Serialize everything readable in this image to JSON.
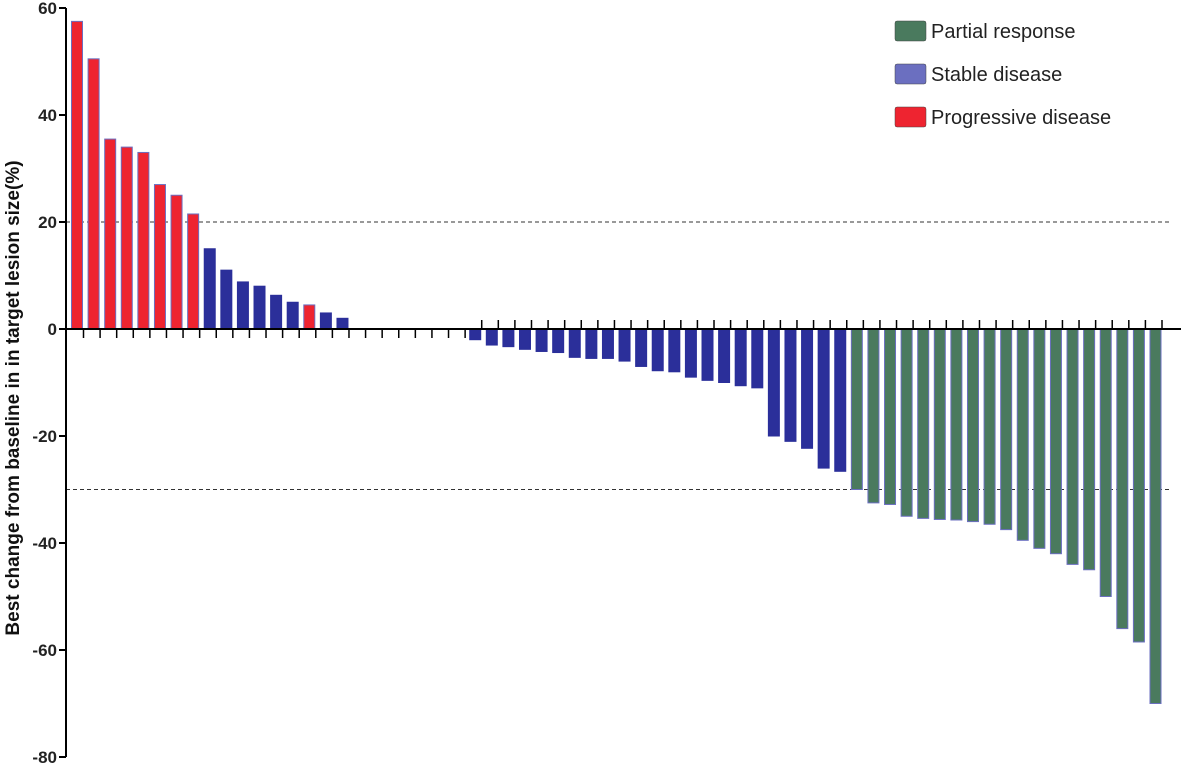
{
  "chart_data": {
    "type": "bar",
    "title": "",
    "xlabel": "",
    "ylabel": "Best change from baseline in  in target lesion size(%)",
    "ylim": [
      -80,
      60
    ],
    "yticks": [
      60,
      40,
      20,
      0,
      -20,
      -40,
      -60,
      -80
    ],
    "reference_lines": [
      20,
      -30
    ],
    "grid": false,
    "legend_position": "top-right",
    "legend": [
      {
        "label": "Partial response",
        "color": "#4a7a5e"
      },
      {
        "label": "Stable disease",
        "color": "#6b6fc0"
      },
      {
        "label": "Progressive disease",
        "color": "#ee2430"
      }
    ],
    "series": [
      {
        "name": "Progressive disease",
        "color": "#ee2430",
        "edge": "#6b6fc0"
      },
      {
        "name": "Stable disease",
        "color": "#2b2f9a",
        "edge": "#2b2f9a"
      },
      {
        "name": "Partial response",
        "color": "#4a7a5e",
        "edge": "#6b6fc0"
      }
    ],
    "values": [
      57.5,
      50.5,
      35.5,
      34,
      33,
      27,
      25,
      21.5,
      15,
      11,
      8.8,
      8,
      6.3,
      5,
      4.5,
      3,
      2,
      0,
      0,
      0,
      0,
      0,
      0,
      0,
      -2,
      -3,
      -3.3,
      -3.8,
      -4.2,
      -4.4,
      -5.3,
      -5.5,
      -5.5,
      -6,
      -7,
      -7.8,
      -8,
      -9,
      -9.6,
      -10,
      -10.6,
      -11,
      -20,
      -21,
      -22.3,
      -26,
      -26.6,
      -30,
      -32.5,
      -32.8,
      -35,
      -35.4,
      -35.6,
      -35.7,
      -36,
      -36.5,
      -37.5,
      -39.5,
      -41,
      -42,
      -44,
      -45,
      -50,
      -56,
      -58.5,
      -70
    ],
    "response": [
      "PD",
      "PD",
      "PD",
      "PD",
      "PD",
      "PD",
      "PD",
      "PD",
      "SD",
      "SD",
      "SD",
      "SD",
      "SD",
      "SD",
      "PD",
      "SD",
      "SD",
      "SD",
      "SD",
      "SD",
      "SD",
      "SD",
      "SD",
      "SD",
      "SD",
      "SD",
      "SD",
      "SD",
      "SD",
      "SD",
      "SD",
      "SD",
      "SD",
      "SD",
      "SD",
      "SD",
      "SD",
      "SD",
      "SD",
      "SD",
      "SD",
      "SD",
      "SD",
      "SD",
      "SD",
      "SD",
      "SD",
      "PR",
      "PR",
      "PR",
      "PR",
      "PR",
      "PR",
      "PR",
      "PR",
      "PR",
      "PR",
      "PR",
      "PR",
      "PR",
      "PR",
      "PR",
      "PR",
      "PR",
      "PR",
      "PR"
    ]
  }
}
